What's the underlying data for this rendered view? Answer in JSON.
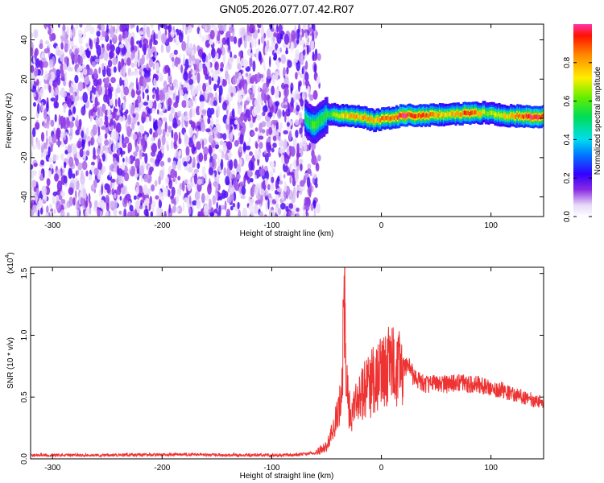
{
  "title": "GN05.2026.077.07.42.R07",
  "chart_data": [
    {
      "type": "heatmap",
      "xlabel": "Height of straight line (km)",
      "ylabel": "Frequency (Hz)",
      "xlim": [
        -320,
        148
      ],
      "ylim": [
        -50,
        48
      ],
      "x_ticks": [
        -300,
        -200,
        -100,
        0,
        100
      ],
      "x_tick_labels": [
        "-300",
        "-200",
        "-100",
        "0",
        "100"
      ],
      "y_ticks": [
        -40,
        -20,
        0,
        20,
        40
      ],
      "y_tick_labels": [
        "-40",
        "-20",
        "0",
        "20",
        "40"
      ],
      "colorbar": {
        "label": "Normalized spectral amplitude",
        "range": [
          0,
          1
        ],
        "ticks": [
          0,
          0.2,
          0.4,
          0.6,
          0.8
        ],
        "tick_labels": [
          "0.0",
          "0.2",
          "0.4",
          "0.6",
          "0.8"
        ]
      },
      "noise_region_x": [
        -320,
        -58
      ],
      "signal_band": [
        {
          "x": -70,
          "y": 0,
          "level": 0.45
        },
        {
          "x": -62,
          "y": -4,
          "level": 0.55
        },
        {
          "x": -50,
          "y": 2,
          "level": 0.5
        },
        {
          "x": -35,
          "y": 1.5,
          "level": 0.75
        },
        {
          "x": -20,
          "y": 1,
          "level": 0.8
        },
        {
          "x": -8,
          "y": -1,
          "level": 0.75
        },
        {
          "x": 20,
          "y": 1.5,
          "level": 0.95
        },
        {
          "x": 40,
          "y": 1.5,
          "level": 0.85
        },
        {
          "x": 60,
          "y": 2,
          "level": 0.7
        },
        {
          "x": 80,
          "y": 2.5,
          "level": 0.95
        },
        {
          "x": 95,
          "y": 3,
          "level": 0.6
        },
        {
          "x": 110,
          "y": 1.5,
          "level": 0.7
        },
        {
          "x": 135,
          "y": 1,
          "level": 0.95
        }
      ]
    },
    {
      "type": "line",
      "xlabel": "Height of straight line (km)",
      "ylabel": "SNR (10 * v/v)",
      "y_multiplier": "(x10",
      "y_multiplier_exp": "4",
      "y_multiplier_close": ")",
      "xlim": [
        -320,
        148
      ],
      "ylim": [
        0,
        1.55
      ],
      "x_ticks": [
        -300,
        -200,
        -100,
        0,
        100
      ],
      "x_tick_labels": [
        "-300",
        "-200",
        "-100",
        "0",
        "100"
      ],
      "y_ticks": [
        0,
        0.5,
        1.0,
        1.5
      ],
      "y_tick_labels": [
        "0.0",
        "0.5",
        "1.0",
        "1.5"
      ],
      "color": "#ee3333",
      "series": [
        {
          "x": [
            -320,
            -250,
            -180,
            -120,
            -80,
            -60,
            -50,
            -45,
            -40,
            -37,
            -35,
            -34,
            -33,
            -32,
            -30,
            -28,
            -25,
            -20,
            -15,
            -10,
            -5,
            0,
            5,
            8,
            10,
            15,
            20,
            25,
            30,
            40,
            50,
            60,
            70,
            80,
            90,
            100,
            110,
            120,
            130,
            140,
            148
          ],
          "y": [
            0.03,
            0.03,
            0.035,
            0.03,
            0.03,
            0.05,
            0.1,
            0.2,
            0.35,
            0.45,
            0.9,
            1.55,
            1.1,
            0.6,
            0.45,
            0.35,
            0.4,
            0.5,
            0.55,
            0.6,
            0.65,
            0.7,
            0.72,
            0.85,
            0.75,
            0.72,
            0.74,
            0.76,
            0.65,
            0.6,
            0.62,
            0.6,
            0.62,
            0.6,
            0.6,
            0.57,
            0.56,
            0.52,
            0.5,
            0.47,
            0.46
          ]
        }
      ]
    }
  ]
}
